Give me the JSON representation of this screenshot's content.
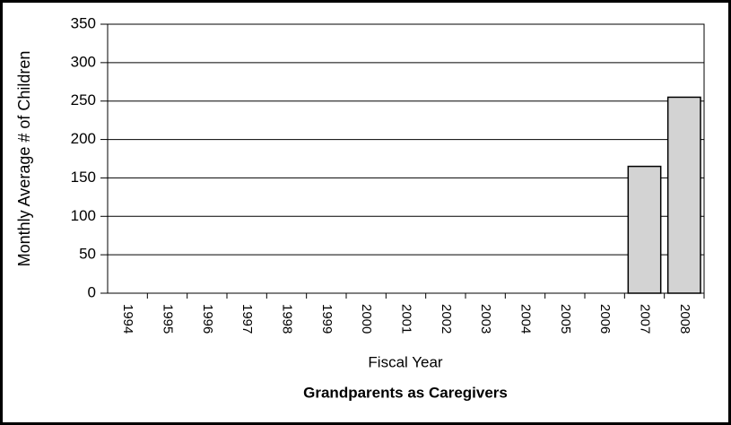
{
  "chart_data": {
    "type": "bar",
    "title": "Grandparents as Caregivers",
    "x_label": "Fiscal Year",
    "y_label": "Monthly Average # of Children",
    "categories": [
      "1994",
      "1995",
      "1996",
      "1997",
      "1998",
      "1999",
      "2000",
      "2001",
      "2002",
      "2003",
      "2004",
      "2005",
      "2006",
      "2007",
      "2008"
    ],
    "values": [
      0,
      0,
      0,
      0,
      0,
      0,
      0,
      0,
      0,
      0,
      0,
      0,
      0,
      165,
      255
    ],
    "color": "#d3d3d3",
    "ylim": [
      0,
      350
    ],
    "yticks": [
      0,
      50,
      100,
      150,
      200,
      250,
      300,
      350
    ],
    "grid": true
  }
}
